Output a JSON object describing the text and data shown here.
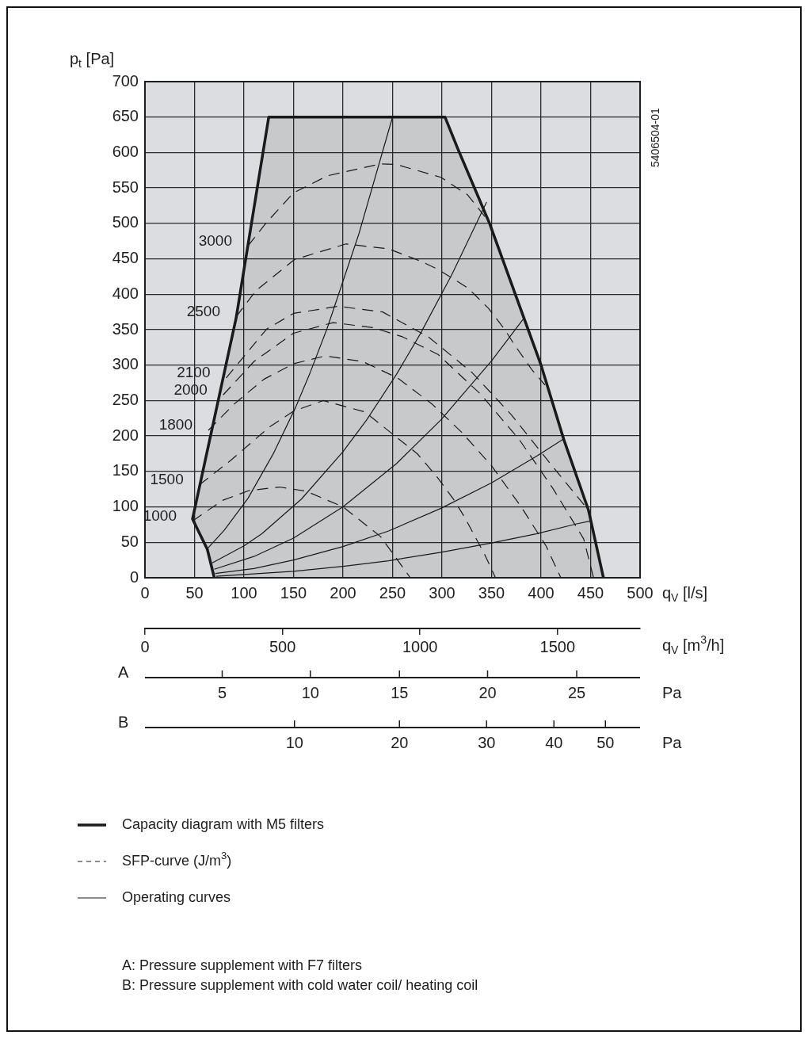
{
  "chart_data": {
    "type": "line",
    "xlabel": "q$_{V}$ [l/s]",
    "ylabel": "p$_{t}$ [Pa]",
    "x2label": "q$_{V}$ [m$^{3}$/h]",
    "xlim": [
      0,
      500
    ],
    "xticks": [
      0,
      50,
      100,
      150,
      200,
      250,
      300,
      350,
      400,
      450,
      500
    ],
    "ylim": [
      0,
      700
    ],
    "yticks": [
      0,
      50,
      100,
      150,
      200,
      250,
      300,
      350,
      400,
      450,
      500,
      550,
      600,
      650,
      700
    ],
    "x2lim": [
      0,
      1800
    ],
    "x2ticks": [
      0,
      500,
      1000,
      1500
    ],
    "grid": true,
    "legend": "bottom",
    "marker": "none",
    "series": [
      {
        "name": "Capacity diagram with M5 filters",
        "type": "area",
        "color": "#1a1a1a",
        "x": [
          70,
          63,
          48,
          92,
          125,
          303,
          316,
          348,
          400,
          423,
          448,
          463
        ],
        "values": [
          0,
          40,
          83,
          366,
          650,
          650,
          605,
          500,
          300,
          195,
          95,
          0
        ]
      },
      {
        "name": "SFP-curve (J/m$^{3}$)",
        "line_style": "dashed",
        "color": "#1a1a1a",
        "x": [
          48,
          78,
          105,
          136,
          163,
          200,
          238,
          268
        ],
        "values": [
          80,
          109,
          123,
          128,
          122,
          100,
          58,
          0
        ]
      },
      {
        "line_style": "dashed",
        "color": "#1a1a1a",
        "x": [
          55,
          86,
          126,
          150,
          180,
          222,
          275,
          294,
          312,
          323,
          343,
          354
        ],
        "values": [
          131,
          165,
          213,
          235,
          250,
          234,
          175,
          144,
          110,
          85,
          33,
          0
        ]
      },
      {
        "line_style": "dashed",
        "color": "#1a1a1a",
        "x": [
          64,
          90,
          120,
          150,
          182,
          220,
          255,
          290,
          320,
          350,
          380,
          405,
          420
        ],
        "values": [
          208,
          245,
          280,
          302,
          313,
          305,
          282,
          245,
          205,
          158,
          100,
          45,
          0
        ]
      },
      {
        "line_style": "dashed",
        "color": "#1a1a1a",
        "x": [
          79,
          110,
          150,
          190,
          230,
          260,
          296,
          339,
          378,
          412,
          443,
          453
        ],
        "values": [
          258,
          305,
          345,
          360,
          353,
          340,
          315,
          259,
          195,
          126,
          55,
          0
        ]
      },
      {
        "line_style": "dashed",
        "color": "#1a1a1a",
        "x": [
          82,
          123,
          150,
          195,
          240,
          286,
          330,
          370,
          410,
          448
        ],
        "values": [
          282,
          351,
          373,
          383,
          375,
          340,
          290,
          230,
          160,
          95
        ]
      },
      {
        "line_style": "dashed",
        "color": "#1a1a1a",
        "x": [
          92,
          112,
          151,
          203,
          246,
          278,
          296,
          326,
          347,
          363,
          373,
          391,
          404
        ],
        "values": [
          368,
          405,
          449,
          471,
          464,
          447,
          435,
          409,
          380,
          351,
          329,
          293,
          272
        ]
      },
      {
        "line_style": "dashed",
        "color": "#1a1a1a",
        "x": [
          104,
          122,
          150,
          184,
          238,
          254,
          299,
          326,
          346
        ],
        "values": [
          468,
          500,
          543,
          567,
          584,
          583,
          565,
          540,
          505
        ]
      },
      {
        "name": "Operating curves",
        "color": "#1a1a1a",
        "x": [
          63,
          80,
          104,
          130,
          152,
          167,
          184,
          216,
          250
        ],
        "values": [
          41,
          67,
          112,
          176,
          240,
          290,
          352,
          485,
          650
        ]
      },
      {
        "color": "#1a1a1a",
        "x": [
          68,
          100,
          118,
          158,
          200,
          224,
          254,
          278,
          310,
          345
        ],
        "values": [
          21,
          45,
          62,
          111,
          178,
          223,
          287,
          344,
          428,
          530
        ]
      },
      {
        "color": "#1a1a1a",
        "x": [
          70,
          110,
          150,
          200,
          254,
          299,
          350,
          382
        ],
        "values": [
          12,
          30,
          56,
          100,
          161,
          223,
          306,
          365
        ]
      },
      {
        "color": "#1a1a1a",
        "x": [
          71,
          110,
          150,
          200,
          246,
          299,
          350,
          395,
          422
        ],
        "values": [
          6,
          13,
          25,
          44,
          66,
          98,
          134,
          171,
          195
        ]
      },
      {
        "color": "#1a1a1a",
        "x": [
          72,
          150,
          200,
          246,
          299,
          350,
          395,
          436,
          450
        ],
        "values": [
          2,
          9,
          16,
          24,
          36,
          49,
          62,
          76,
          80
        ]
      }
    ],
    "annotations": [
      "5406504-01",
      "A",
      "Pa",
      "B",
      "Pa",
      "A: Pressure supplement with F7 filters",
      "B: Pressure supplement with cold water coil/ heating coil",
      {
        "text": "5",
        "x": 78
      },
      {
        "text": "10",
        "x": 167
      },
      {
        "text": "15",
        "x": 257
      },
      {
        "text": "20",
        "x": 346
      },
      {
        "text": "25",
        "x": 436
      },
      {
        "text": "10",
        "x": 151
      },
      {
        "text": "20",
        "x": 257
      },
      {
        "text": "30",
        "x": 345
      },
      {
        "text": "40",
        "x": 413
      },
      {
        "text": "50",
        "x": 465
      },
      {
        "text": "1000",
        "x": 48,
        "y": 80
      },
      {
        "text": "1500",
        "x": 55,
        "y": 131
      },
      {
        "text": "1800",
        "x": 64,
        "y": 208
      },
      {
        "text": "2000",
        "x": 79,
        "y": 258
      },
      {
        "text": "2100",
        "x": 82,
        "y": 282
      },
      {
        "text": "2500",
        "x": 92,
        "y": 368
      },
      {
        "text": "3000",
        "x": 104,
        "y": 468
      }
    ]
  }
}
